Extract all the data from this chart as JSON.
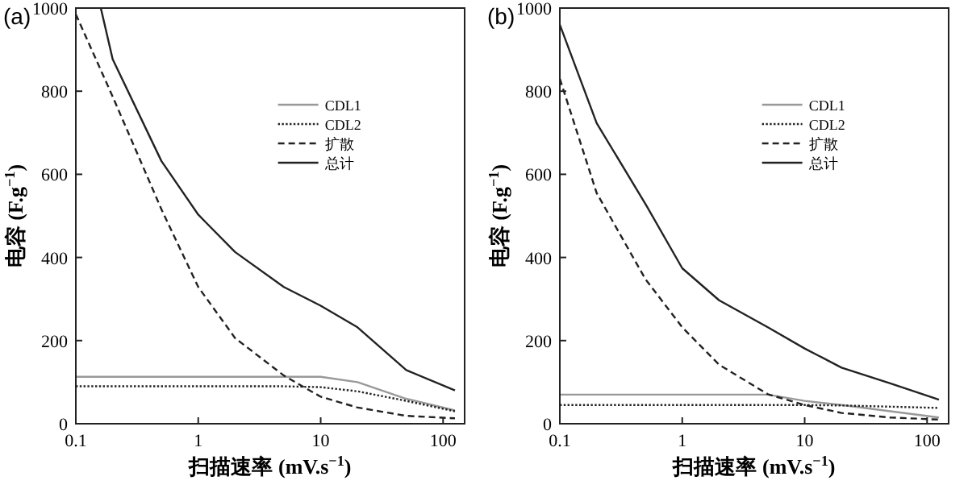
{
  "chart_data": [
    {
      "type": "line",
      "title": "(a)",
      "xlabel": "扫描速率 (mV.s$^{−1}$)",
      "ylabel": "电容 (F.g$^{−1}$)",
      "log": "x",
      "xlim": [
        0.1,
        150
      ],
      "xticks": [
        0.1,
        1,
        10,
        100
      ],
      "ylim": [
        0,
        1000
      ],
      "yticks": [
        0,
        200,
        400,
        600,
        800,
        1000
      ],
      "legend": "top right",
      "x": [
        0.1,
        0.2,
        0.5,
        1,
        2,
        5,
        10,
        20,
        50,
        125
      ],
      "series": [
        {
          "name": "CDL1",
          "color": "#999999",
          "line_style": "solid",
          "values": [
            113,
            113,
            113,
            113,
            113,
            113,
            113,
            100,
            60,
            32
          ]
        },
        {
          "name": "CDL2",
          "color": "#222222",
          "line_style": "dotted",
          "values": [
            90,
            90,
            90,
            90,
            90,
            90,
            88,
            78,
            55,
            30
          ]
        },
        {
          "name": "扩散",
          "color": "#222222",
          "line_style": "dashed",
          "values": [
            985,
            787,
            516,
            329,
            206,
            116,
            65,
            39,
            19,
            13
          ]
        },
        {
          "name": "总计",
          "color": "#222222",
          "line_style": "solid",
          "x": [
            0.16,
            0.2,
            0.5,
            1,
            2,
            5,
            10,
            20,
            50,
            125
          ],
          "values": [
            1000,
            877,
            632,
            503,
            413,
            329,
            284,
            232,
            129,
            80
          ]
        }
      ]
    },
    {
      "type": "line",
      "title": "(b)",
      "xlabel": "扫描速率 (mV.s$^{−1}$)",
      "ylabel": "电容 (F.g$^{−1}$)",
      "log": "x",
      "xlim": [
        0.1,
        150
      ],
      "xticks": [
        0.1,
        1,
        10,
        100
      ],
      "ylim": [
        0,
        1000
      ],
      "yticks": [
        0,
        200,
        400,
        600,
        800,
        1000
      ],
      "legend": "top right",
      "x": [
        0.1,
        0.2,
        0.5,
        1,
        2,
        5,
        10,
        20,
        50,
        125
      ],
      "series": [
        {
          "name": "CDL1",
          "color": "#999999",
          "line_style": "solid",
          "values": [
            70,
            70,
            70,
            70,
            70,
            70,
            55,
            45,
            30,
            15
          ]
        },
        {
          "name": "CDL2",
          "color": "#222222",
          "line_style": "dotted",
          "values": [
            45,
            45,
            45,
            45,
            45,
            45,
            45,
            44,
            41,
            38
          ]
        },
        {
          "name": "扩散",
          "color": "#222222",
          "line_style": "dashed",
          "values": [
            830,
            555,
            348,
            232,
            142,
            71,
            45,
            26,
            15,
            10
          ]
        },
        {
          "name": "总计",
          "color": "#222222",
          "line_style": "solid",
          "values": [
            960,
            723,
            529,
            374,
            297,
            232,
            181,
            135,
            97,
            58
          ]
        }
      ]
    }
  ]
}
